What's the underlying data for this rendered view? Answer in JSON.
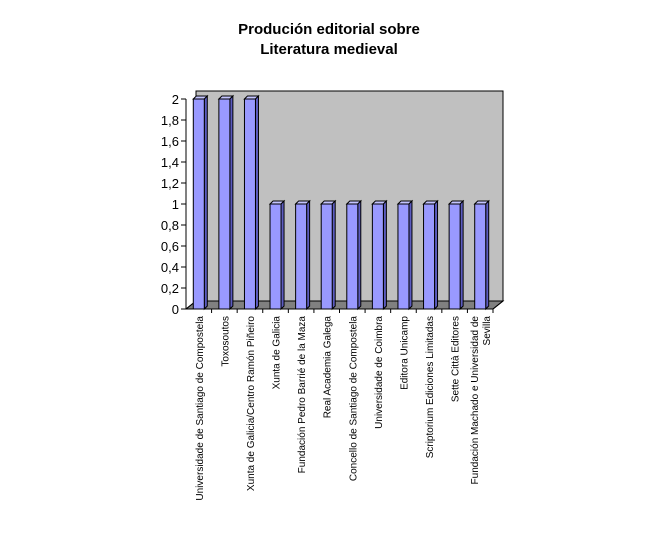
{
  "chart_data": {
    "type": "bar",
    "title_lines": [
      "Produción editorial sobre",
      "Literatura medieval"
    ],
    "categories": [
      [
        "Universidade de Santiago de Compostela"
      ],
      [
        "Toxosoutos"
      ],
      [
        "Xunta de Galicia/Centro Ramón Piñeiro"
      ],
      [
        "Xunta de Galicia"
      ],
      [
        "Fundación Pedro Barrié de la Maza"
      ],
      [
        "Real Academia Galega"
      ],
      [
        "Concello de Santiago de Compostela"
      ],
      [
        "Universidade de Coimbra"
      ],
      [
        "Editora Unicamp"
      ],
      [
        "Scriptorium Ediciones Limitadas"
      ],
      [
        "Sette Città Editores"
      ],
      [
        "Fundación Machado e Universidad de",
        "Sevilla"
      ]
    ],
    "values": [
      2,
      2,
      2,
      1,
      1,
      1,
      1,
      1,
      1,
      1,
      1,
      1
    ],
    "ylim": [
      0,
      2
    ],
    "y_ticks": [
      "0",
      "0,2",
      "0,4",
      "0,6",
      "0,8",
      "1",
      "1,2",
      "1,4",
      "1,6",
      "1,8",
      "2"
    ],
    "xlabel": "",
    "ylabel": "",
    "grid": false,
    "legend": "none",
    "colors": {
      "bar_front": "#9999ff",
      "bar_side": "#5c5cc0",
      "bar_top": "#c4c4ff",
      "wall": "#c0c0c0",
      "floor": "#808080",
      "outline": "#000000"
    }
  }
}
